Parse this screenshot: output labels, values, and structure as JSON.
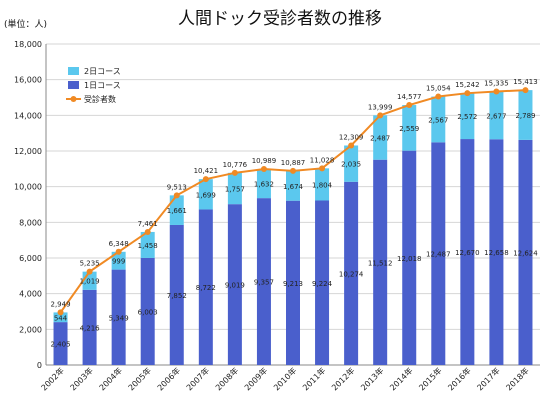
{
  "chart_data": {
    "type": "bar",
    "title": "人間ドック受診者数の推移",
    "unit_label": "(単位：人)",
    "categories": [
      "2002年",
      "2003年",
      "2004年",
      "2005年",
      "2006年",
      "2007年",
      "2008年",
      "2009年",
      "2010年",
      "2011年",
      "2012年",
      "2013年",
      "2014年",
      "2015年",
      "2016年",
      "2017年",
      "2018年"
    ],
    "series": [
      {
        "name": "2日コース",
        "type": "bar-stacked",
        "color": "#5bc8ee",
        "values": [
          544,
          1019,
          999,
          1458,
          1661,
          1699,
          1757,
          1632,
          1674,
          1804,
          2035,
          2487,
          2559,
          2567,
          2572,
          2677,
          2789
        ]
      },
      {
        "name": "1日コース",
        "type": "bar-stacked",
        "color": "#4a5fcc",
        "values": [
          2405,
          4216,
          5349,
          6003,
          7852,
          8722,
          9019,
          9357,
          9213,
          9224,
          10274,
          11512,
          12018,
          12487,
          12670,
          12658,
          12624
        ]
      },
      {
        "name": "受診者数",
        "type": "line",
        "color": "#f08a24",
        "values": [
          2949,
          5235,
          6348,
          7461,
          9513,
          10421,
          10776,
          10989,
          10887,
          11028,
          12309,
          13999,
          14577,
          15054,
          15242,
          15335,
          15413
        ]
      }
    ],
    "ylim": [
      0,
      18000
    ],
    "yticks": [
      0,
      2000,
      4000,
      6000,
      8000,
      10000,
      12000,
      14000,
      16000,
      18000
    ],
    "grid": true,
    "legend": "top-left"
  }
}
